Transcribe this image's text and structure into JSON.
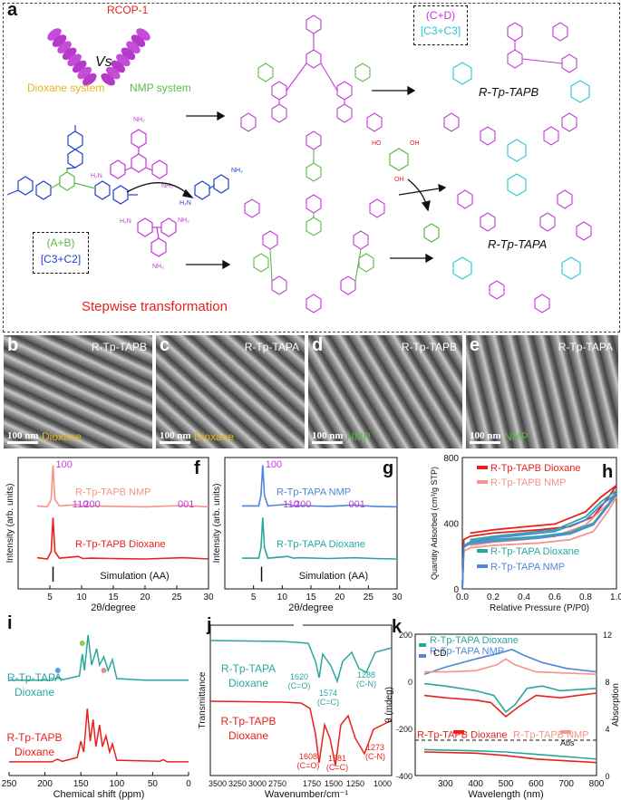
{
  "panel_a": {
    "letter": "a",
    "rcop_label": "RCOP-1",
    "vs_label": "Vs",
    "dioxane_system": "Dioxane system",
    "nmp_system": "NMP system",
    "ab_box_line1": "(A+B)",
    "ab_box_line2": "[C3+C2]",
    "cd_box_line1": "(C+D)",
    "cd_box_line2": "[C3+C3]",
    "product_top": "R-Tp-TAPB",
    "product_bottom": "R-Tp-TAPA",
    "stepwise": "Stepwise transformation",
    "colors": {
      "red": "#e8211c",
      "purple": "#c13bd6",
      "green": "#5fb848",
      "cyan": "#25c6d6",
      "blue": "#1e3fcf",
      "yellow": "#e3b719"
    }
  },
  "sem_panels": [
    {
      "letter": "b",
      "title": "R-Tp-TAPB",
      "scale": "100 nm",
      "system": "Dioxane",
      "system_color": "#e3b719"
    },
    {
      "letter": "c",
      "title": "R-Tp-TAPA",
      "scale": "100 nm",
      "system": "Dioxane",
      "system_color": "#e3b719"
    },
    {
      "letter": "d",
      "title": "R-Tp-TAPB",
      "scale": "100 nm",
      "system": "NMP",
      "system_color": "#5fb848"
    },
    {
      "letter": "e",
      "title": "R-Tp-TAPA",
      "scale": "100 nm",
      "system": "NMP",
      "system_color": "#5fb848"
    }
  ],
  "chart_data": [
    {
      "panel": "f",
      "type": "line",
      "xlabel": "2θ/degree",
      "ylabel": "Intensity (arb. units)",
      "xlim": [
        0,
        30
      ],
      "xticks": [
        5,
        10,
        15,
        20,
        25,
        30
      ],
      "series": [
        {
          "name": "R-Tp-TAPB NMP",
          "color": "#f4948a",
          "offset": 0.62,
          "points": [
            [
              3,
              0.05
            ],
            [
              4.6,
              0.03
            ],
            [
              5.2,
              0.2
            ],
            [
              5.5,
              1.0
            ],
            [
              5.8,
              0.2
            ],
            [
              6.5,
              0.05
            ],
            [
              9.5,
              0.08
            ],
            [
              10.2,
              0.04
            ],
            [
              11.5,
              0.05
            ],
            [
              15,
              0.04
            ],
            [
              20,
              0.03
            ],
            [
              26,
              0.06
            ],
            [
              30,
              0.03
            ]
          ]
        },
        {
          "name": "R-Tp-TAPB Dioxane",
          "color": "#e8211c",
          "offset": 0.18,
          "points": [
            [
              3,
              0.06
            ],
            [
              4.6,
              0.03
            ],
            [
              5.2,
              0.2
            ],
            [
              5.5,
              1.0
            ],
            [
              5.8,
              0.2
            ],
            [
              6.5,
              0.05
            ],
            [
              9.5,
              0.09
            ],
            [
              10.2,
              0.04
            ],
            [
              11.5,
              0.05
            ],
            [
              15,
              0.04
            ],
            [
              20,
              0.03
            ],
            [
              26,
              0.06
            ],
            [
              30,
              0.03
            ]
          ]
        },
        {
          "name": "Simulation (AA)",
          "color": "#111111",
          "offset": 0.0,
          "sticks": [
            [
              5.5,
              0.18
            ]
          ]
        }
      ],
      "peak_labels": [
        {
          "text": "100",
          "x": 5.5
        },
        {
          "text": "110",
          "x": 9.4
        },
        {
          "text": "200",
          "x": 11.2
        },
        {
          "text": "001",
          "x": 26
        }
      ],
      "letter": "f"
    },
    {
      "panel": "g",
      "type": "line",
      "xlabel": "2θ/degree",
      "ylabel": "Intensity (arb. units)",
      "xlim": [
        0,
        30
      ],
      "xticks": [
        5,
        10,
        15,
        20,
        25,
        30
      ],
      "series": [
        {
          "name": "R-Tp-TAPA NMP",
          "color": "#4f86d9",
          "offset": 0.62,
          "points": [
            [
              3,
              0.05
            ],
            [
              5.9,
              0.05
            ],
            [
              6.3,
              0.3
            ],
            [
              6.6,
              1.0
            ],
            [
              6.9,
              0.3
            ],
            [
              7.5,
              0.05
            ],
            [
              11,
              0.09
            ],
            [
              12,
              0.05
            ],
            [
              13,
              0.06
            ],
            [
              18,
              0.04
            ],
            [
              22.5,
              0.07
            ],
            [
              26,
              0.04
            ],
            [
              30,
              0.03
            ]
          ]
        },
        {
          "name": "R-Tp-TAPA Dioxane",
          "color": "#2aa79c",
          "offset": 0.18,
          "points": [
            [
              3,
              0.05
            ],
            [
              5.9,
              0.05
            ],
            [
              6.3,
              0.3
            ],
            [
              6.6,
              1.0
            ],
            [
              6.9,
              0.3
            ],
            [
              7.5,
              0.05
            ],
            [
              11,
              0.09
            ],
            [
              12,
              0.05
            ],
            [
              13,
              0.06
            ],
            [
              18,
              0.04
            ],
            [
              22.5,
              0.06
            ],
            [
              26,
              0.04
            ],
            [
              30,
              0.03
            ]
          ]
        },
        {
          "name": "Simulation (AA)",
          "color": "#111111",
          "offset": 0.0,
          "sticks": [
            [
              6.4,
              0.18
            ]
          ]
        }
      ],
      "peak_labels": [
        {
          "text": "100",
          "x": 6.6
        },
        {
          "text": "110",
          "x": 11.1
        },
        {
          "text": "200",
          "x": 13.1
        },
        {
          "text": "001",
          "x": 22.5
        }
      ],
      "letter": "g"
    },
    {
      "panel": "h",
      "type": "line",
      "xlabel": "Relative Pressure (P/P0)",
      "ylabel": "Quantity Adsorbed (cm³/g STP)",
      "xlim": [
        0,
        1.0
      ],
      "ylim": [
        0,
        800
      ],
      "xticks": [
        0.0,
        0.2,
        0.4,
        0.6,
        0.8,
        1.0
      ],
      "yticks": [
        0,
        400,
        800
      ],
      "series": [
        {
          "name": "R-Tp-TAPB Dioxane",
          "color": "#e8211c",
          "ads": [
            [
              0,
              0
            ],
            [
              0.01,
              300
            ],
            [
              0.05,
              320
            ],
            [
              0.2,
              340
            ],
            [
              0.5,
              360
            ],
            [
              0.7,
              380
            ],
            [
              0.85,
              440
            ],
            [
              0.95,
              560
            ],
            [
              1.0,
              630
            ]
          ],
          "des": [
            [
              1.0,
              630
            ],
            [
              0.9,
              560
            ],
            [
              0.8,
              470
            ],
            [
              0.6,
              395
            ],
            [
              0.4,
              378
            ],
            [
              0.2,
              360
            ],
            [
              0.05,
              340
            ]
          ]
        },
        {
          "name": "R-Tp-TAPB NMP",
          "color": "#f4948a",
          "ads": [
            [
              0,
              0
            ],
            [
              0.01,
              230
            ],
            [
              0.05,
              250
            ],
            [
              0.2,
              265
            ],
            [
              0.5,
              280
            ],
            [
              0.7,
              300
            ],
            [
              0.85,
              350
            ],
            [
              0.95,
              480
            ],
            [
              1.0,
              560
            ]
          ],
          "des": [
            [
              1.0,
              560
            ],
            [
              0.9,
              480
            ],
            [
              0.8,
              390
            ],
            [
              0.6,
              320
            ],
            [
              0.4,
              300
            ],
            [
              0.2,
              285
            ],
            [
              0.05,
              265
            ]
          ]
        },
        {
          "name": "R-Tp-TAPA Dioxane",
          "color": "#2aa79c",
          "ads": [
            [
              0,
              0
            ],
            [
              0.01,
              265
            ],
            [
              0.05,
              285
            ],
            [
              0.2,
              300
            ],
            [
              0.5,
              320
            ],
            [
              0.7,
              345
            ],
            [
              0.85,
              400
            ],
            [
              0.95,
              520
            ],
            [
              1.0,
              600
            ]
          ],
          "des": [
            [
              1.0,
              600
            ],
            [
              0.9,
              530
            ],
            [
              0.8,
              440
            ],
            [
              0.6,
              360
            ],
            [
              0.4,
              340
            ],
            [
              0.2,
              320
            ],
            [
              0.05,
              300
            ]
          ]
        },
        {
          "name": "R-Tp-TAPA NMP",
          "color": "#4f86d9",
          "ads": [
            [
              0,
              0
            ],
            [
              0.01,
              255
            ],
            [
              0.05,
              275
            ],
            [
              0.2,
              290
            ],
            [
              0.5,
              310
            ],
            [
              0.7,
              335
            ],
            [
              0.85,
              390
            ],
            [
              0.95,
              510
            ],
            [
              1.0,
              580
            ]
          ],
          "des": [
            [
              1.0,
              580
            ],
            [
              0.9,
              510
            ],
            [
              0.8,
              420
            ],
            [
              0.6,
              350
            ],
            [
              0.4,
              330
            ],
            [
              0.2,
              310
            ],
            [
              0.05,
              290
            ]
          ]
        }
      ],
      "letter": "h"
    },
    {
      "panel": "i",
      "type": "line",
      "xlabel": "Chemical shift (ppm)",
      "ylabel": "",
      "xlim": [
        250,
        0
      ],
      "xticks": [
        250,
        200,
        150,
        100,
        50,
        0
      ],
      "series": [
        {
          "name": "R-Tp-TAPA Dioxane",
          "color": "#2aa79c",
          "offset": 0.62,
          "points": [
            [
              250,
              0.02
            ],
            [
              190,
              0.02
            ],
            [
              182,
              0.08
            ],
            [
              175,
              0.03
            ],
            [
              152,
              0.1
            ],
            [
              148,
              0.5
            ],
            [
              145,
              0.2
            ],
            [
              140,
              0.85
            ],
            [
              135,
              0.3
            ],
            [
              128,
              0.6
            ],
            [
              124,
              0.3
            ],
            [
              118,
              0.45
            ],
            [
              112,
              0.2
            ],
            [
              106,
              0.4
            ],
            [
              100,
              0.05
            ],
            [
              60,
              0.02
            ],
            [
              0,
              0.02
            ]
          ]
        },
        {
          "name": "R-Tp-TAPB Dioxane",
          "color": "#e8211c",
          "offset": 0.05,
          "points": [
            [
              250,
              0.02
            ],
            [
              190,
              0.02
            ],
            [
              183,
              0.07
            ],
            [
              176,
              0.03
            ],
            [
              155,
              0.1
            ],
            [
              150,
              0.4
            ],
            [
              146,
              0.2
            ],
            [
              141,
              1.0
            ],
            [
              137,
              0.4
            ],
            [
              133,
              0.8
            ],
            [
              129,
              0.3
            ],
            [
              124,
              0.7
            ],
            [
              120,
              0.3
            ],
            [
              115,
              0.5
            ],
            [
              110,
              0.2
            ],
            [
              106,
              0.35
            ],
            [
              100,
              0.05
            ],
            [
              40,
              0.03
            ],
            [
              35,
              0.06
            ],
            [
              30,
              0.02
            ],
            [
              0,
              0.02
            ]
          ]
        }
      ],
      "letter": "i"
    },
    {
      "panel": "j",
      "type": "line",
      "xlabel": "Wavenumber/cm⁻¹",
      "ylabel": "Transmittance",
      "xticks": [
        3500,
        3250,
        3000,
        2750,
        1750,
        1500,
        1250,
        1000
      ],
      "series": [
        {
          "name": "R-Tp-TAPA Dioxane",
          "color": "#2aa79c",
          "annotations": [
            "1620 (C=O)",
            "1574 (C=C)",
            "1288 (C-N)"
          ]
        },
        {
          "name": "R-Tp-TAPB Dioxane",
          "color": "#e8211c",
          "annotations": [
            "1608 (C=O)",
            "1581 (C=C)",
            "1273 (C-N)"
          ]
        }
      ],
      "letter": "j"
    },
    {
      "panel": "k",
      "type": "line",
      "xlabel": "Wavelength (nm)",
      "ylabel": "θ (mdeg)",
      "y2label": "Absorption",
      "xlim": [
        200,
        800
      ],
      "xticks": [
        300,
        400,
        500,
        600,
        700,
        800
      ],
      "ylim": [
        -400,
        200
      ],
      "yticks": [
        -400,
        -200,
        0,
        200
      ],
      "y2ticks": [
        0,
        4,
        8,
        12
      ],
      "series": [
        {
          "name": "R-Tp-TAPA Dioxane",
          "color": "#2aa79c"
        },
        {
          "name": "R-Tp-TAPA NMP",
          "color": "#4f86d9"
        },
        {
          "name": "R-Tp-TAPB Dioxane",
          "color": "#e8211c"
        },
        {
          "name": "R-Tp-TAPB NMP",
          "color": "#f4948a"
        }
      ],
      "cd_label": "CD",
      "abs_label": "Abs",
      "letter": "k"
    }
  ]
}
